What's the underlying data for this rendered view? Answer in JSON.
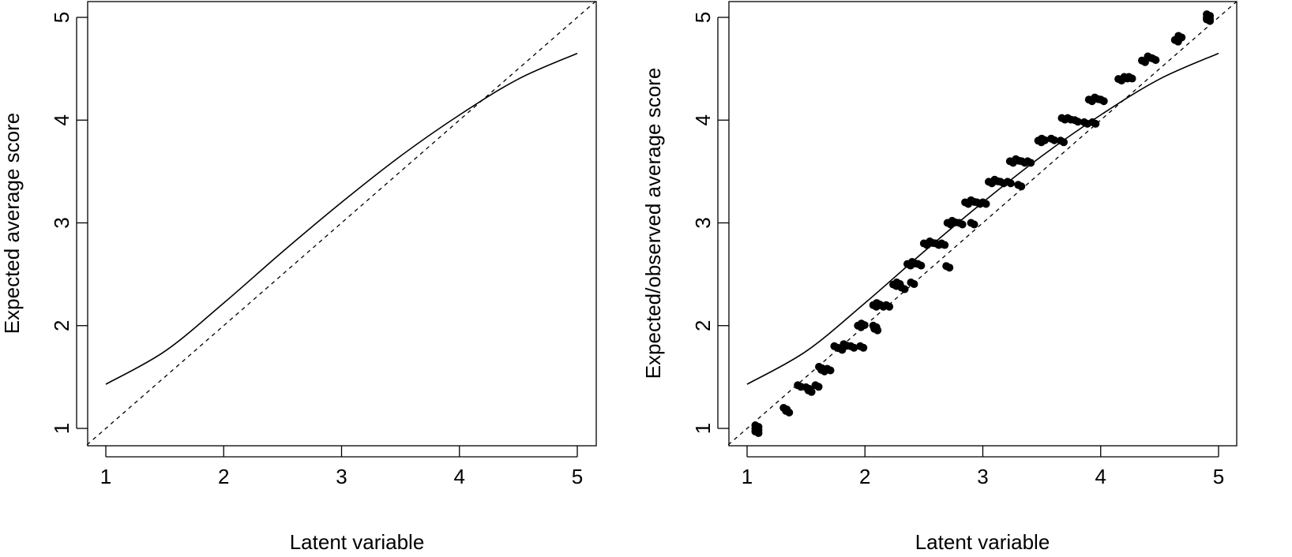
{
  "chart_data": [
    {
      "type": "line",
      "title": "",
      "xlabel": "Latent variable",
      "ylabel": "Expected average score",
      "xlim": [
        0.84,
        5.16
      ],
      "ylim": [
        0.84,
        5.16
      ],
      "xticks": [
        "1",
        "2",
        "3",
        "4",
        "5"
      ],
      "yticks": [
        "1",
        "2",
        "3",
        "4",
        "5"
      ],
      "grid": false,
      "legend": null,
      "series": [
        {
          "name": "expected curve",
          "style": "solid",
          "x": [
            1,
            1.5,
            2,
            2.5,
            3,
            3.5,
            4,
            4.5,
            5
          ],
          "y": [
            1.43,
            1.75,
            2.22,
            2.72,
            3.2,
            3.65,
            4.05,
            4.4,
            4.65
          ]
        },
        {
          "name": "identity line",
          "style": "dashed",
          "x": [
            0.84,
            5.16
          ],
          "y": [
            0.84,
            5.16
          ]
        }
      ]
    },
    {
      "type": "scatter",
      "title": "",
      "xlabel": "Latent variable",
      "ylabel": "Expected/observed average score",
      "xlim": [
        0.84,
        5.16
      ],
      "ylim": [
        0.84,
        5.16
      ],
      "xticks": [
        "1",
        "2",
        "3",
        "4",
        "5"
      ],
      "yticks": [
        "1",
        "2",
        "3",
        "4",
        "5"
      ],
      "grid": false,
      "legend": null,
      "series": [
        {
          "name": "expected curve",
          "style": "solid",
          "x": [
            1,
            1.5,
            2,
            2.5,
            3,
            3.5,
            4,
            4.5,
            5
          ],
          "y": [
            1.43,
            1.75,
            2.22,
            2.72,
            3.2,
            3.65,
            4.05,
            4.4,
            4.65
          ]
        },
        {
          "name": "identity line",
          "style": "dashed",
          "x": [
            0.84,
            5.16
          ],
          "y": [
            0.84,
            5.16
          ]
        },
        {
          "name": "observed averages",
          "style": "points",
          "points": [
            [
              1.07,
              1.0
            ],
            [
              1.07,
              0.97
            ],
            [
              1.07,
              1.03
            ],
            [
              1.31,
              1.2
            ],
            [
              1.33,
              1.17
            ],
            [
              1.43,
              1.42
            ],
            [
              1.5,
              1.4
            ],
            [
              1.52,
              1.37
            ],
            [
              1.58,
              1.42
            ],
            [
              1.61,
              1.6
            ],
            [
              1.63,
              1.57
            ],
            [
              1.68,
              1.58
            ],
            [
              1.74,
              1.8
            ],
            [
              1.78,
              1.78
            ],
            [
              1.82,
              1.82
            ],
            [
              1.88,
              1.8
            ],
            [
              1.96,
              1.8
            ],
            [
              1.94,
              2.0
            ],
            [
              1.97,
              2.02
            ],
            [
              2.07,
              2.0
            ],
            [
              2.08,
              1.97
            ],
            [
              2.07,
              2.2
            ],
            [
              2.1,
              2.22
            ],
            [
              2.13,
              2.2
            ],
            [
              2.18,
              2.2
            ],
            [
              2.24,
              2.4
            ],
            [
              2.27,
              2.42
            ],
            [
              2.31,
              2.37
            ],
            [
              2.39,
              2.42
            ],
            [
              2.36,
              2.6
            ],
            [
              2.4,
              2.62
            ],
            [
              2.45,
              2.6
            ],
            [
              2.5,
              2.8
            ],
            [
              2.55,
              2.82
            ],
            [
              2.6,
              2.8
            ],
            [
              2.65,
              2.8
            ],
            [
              2.69,
              2.58
            ],
            [
              2.7,
              3.0
            ],
            [
              2.74,
              3.02
            ],
            [
              2.8,
              3.0
            ],
            [
              2.9,
              3.0
            ],
            [
              2.85,
              3.2
            ],
            [
              2.9,
              3.22
            ],
            [
              2.95,
              3.2
            ],
            [
              3.0,
              3.2
            ],
            [
              3.05,
              3.4
            ],
            [
              3.1,
              3.42
            ],
            [
              3.15,
              3.4
            ],
            [
              3.21,
              3.4
            ],
            [
              3.3,
              3.37
            ],
            [
              3.23,
              3.6
            ],
            [
              3.28,
              3.62
            ],
            [
              3.33,
              3.6
            ],
            [
              3.38,
              3.6
            ],
            [
              3.47,
              3.8
            ],
            [
              3.5,
              3.82
            ],
            [
              3.58,
              3.82
            ],
            [
              3.66,
              3.8
            ],
            [
              3.67,
              4.02
            ],
            [
              3.72,
              4.02
            ],
            [
              3.78,
              4.0
            ],
            [
              3.86,
              3.98
            ],
            [
              3.93,
              3.98
            ],
            [
              3.9,
              4.2
            ],
            [
              3.95,
              4.22
            ],
            [
              4.0,
              4.2
            ],
            [
              4.15,
              4.4
            ],
            [
              4.2,
              4.42
            ],
            [
              4.24,
              4.42
            ],
            [
              4.35,
              4.58
            ],
            [
              4.4,
              4.62
            ],
            [
              4.44,
              4.6
            ],
            [
              4.63,
              4.78
            ],
            [
              4.66,
              4.82
            ],
            [
              4.9,
              5.0
            ],
            [
              4.9,
              5.03
            ],
            [
              4.9,
              4.98
            ]
          ]
        }
      ]
    }
  ],
  "panels": {
    "left": {
      "xlabel": "Latent variable",
      "ylabel": "Expected average score",
      "xticks": [
        "1",
        "2",
        "3",
        "4",
        "5"
      ],
      "yticks": [
        "1",
        "2",
        "3",
        "4",
        "5"
      ]
    },
    "right": {
      "xlabel": "Latent variable",
      "ylabel": "Expected/observed average score",
      "xticks": [
        "1",
        "2",
        "3",
        "4",
        "5"
      ],
      "yticks": [
        "1",
        "2",
        "3",
        "4",
        "5"
      ]
    }
  }
}
